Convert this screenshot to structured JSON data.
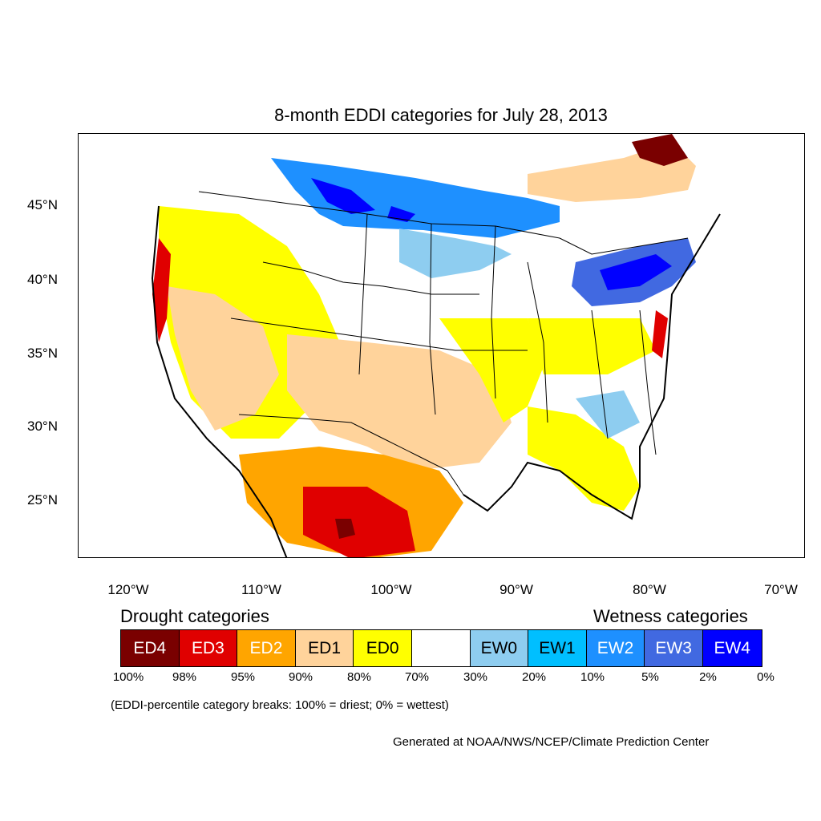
{
  "title": "8-month EDDI categories for July 28, 2013",
  "axes": {
    "lat_labels": [
      "45°N",
      "40°N",
      "35°N",
      "30°N",
      "25°N"
    ],
    "lon_labels": [
      "120°W",
      "110°W",
      "100°W",
      "90°W",
      "80°W",
      "70°W"
    ]
  },
  "legend": {
    "drought_heading": "Drought categories",
    "wetness_heading": "Wetness categories",
    "categories": [
      {
        "label": "ED4",
        "color": "#7a0000",
        "text_color": "#ffffff"
      },
      {
        "label": "ED3",
        "color": "#e00000",
        "text_color": "#ffffff"
      },
      {
        "label": "ED2",
        "color": "#ffa500",
        "text_color": "#ffffff"
      },
      {
        "label": "ED1",
        "color": "#ffd39b",
        "text_color": "#000000"
      },
      {
        "label": "ED0",
        "color": "#ffff00",
        "text_color": "#000000"
      },
      {
        "label": "",
        "color": "#ffffff",
        "text_color": "#000000"
      },
      {
        "label": "EW0",
        "color": "#8ecdf0",
        "text_color": "#000000"
      },
      {
        "label": "EW1",
        "color": "#00bfff",
        "text_color": "#000000"
      },
      {
        "label": "EW2",
        "color": "#1e90ff",
        "text_color": "#ffffff"
      },
      {
        "label": "EW3",
        "color": "#4169e1",
        "text_color": "#ffffff"
      },
      {
        "label": "EW4",
        "color": "#0000ff",
        "text_color": "#ffffff"
      }
    ],
    "percent_breaks": [
      "100%",
      "98%",
      "95%",
      "90%",
      "80%",
      "70%",
      "30%",
      "20%",
      "10%",
      "5%",
      "2%",
      "0%"
    ]
  },
  "note": "(EDDI-percentile category breaks: 100% = driest; 0% = wettest)",
  "credit": "Generated at NOAA/NWS/NCEP/Climate Prediction Center"
}
